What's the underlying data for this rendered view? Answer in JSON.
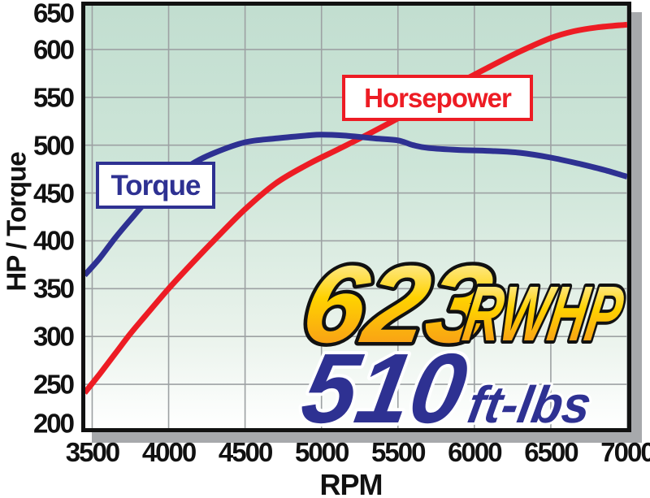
{
  "colors": {
    "background": "#ffffff",
    "plot_top_green": "#c2ded0",
    "plot_bottom_white": "#ffffff",
    "grid": "#9da1a3",
    "border": "#111111",
    "drop_shadow": "#a7a9ac",
    "torque_blue": "#2e3192",
    "horsepower_red": "#ed1c24",
    "gold_gradient_top": "#fef6d8",
    "gold_gradient_mid": "#ffd200",
    "gold_gradient_bottom": "#f68b1f",
    "axis_text": "#111111"
  },
  "chart_data": {
    "type": "line",
    "title": "",
    "xlabel": "RPM",
    "ylabel": "HP / Torque",
    "xlim": [
      3455,
      7000
    ],
    "ylim": [
      200,
      650
    ],
    "x_ticks": [
      3500,
      4000,
      4500,
      5000,
      5500,
      6000,
      6500,
      7000
    ],
    "y_ticks": [
      200,
      250,
      300,
      350,
      400,
      450,
      500,
      550,
      600,
      650
    ],
    "grid": true,
    "legend_position": "labeled boxes on chart",
    "series": [
      {
        "name": "Horsepower",
        "color": "#ed1c24",
        "points": [
          [
            3450,
            241
          ],
          [
            3550,
            261
          ],
          [
            3650,
            282
          ],
          [
            3750,
            303
          ],
          [
            3850,
            322
          ],
          [
            4000,
            350
          ],
          [
            4150,
            376
          ],
          [
            4300,
            401
          ],
          [
            4500,
            433
          ],
          [
            4700,
            460
          ],
          [
            4900,
            479
          ],
          [
            5100,
            495
          ],
          [
            5300,
            511
          ],
          [
            5500,
            528
          ],
          [
            5700,
            546
          ],
          [
            5900,
            565
          ],
          [
            6100,
            582
          ],
          [
            6300,
            598
          ],
          [
            6500,
            612
          ],
          [
            6650,
            619
          ],
          [
            6800,
            623
          ],
          [
            7000,
            626
          ]
        ]
      },
      {
        "name": "Torque",
        "color": "#2e3192",
        "points": [
          [
            3450,
            364
          ],
          [
            3550,
            382
          ],
          [
            3650,
            403
          ],
          [
            3750,
            422
          ],
          [
            3850,
            440
          ],
          [
            4000,
            461
          ],
          [
            4150,
            480
          ],
          [
            4300,
            492
          ],
          [
            4500,
            503
          ],
          [
            4700,
            507
          ],
          [
            4900,
            510
          ],
          [
            5000,
            511
          ],
          [
            5150,
            510
          ],
          [
            5350,
            507
          ],
          [
            5500,
            505
          ],
          [
            5600,
            500
          ],
          [
            5700,
            497
          ],
          [
            5900,
            495
          ],
          [
            6100,
            494
          ],
          [
            6300,
            492
          ],
          [
            6500,
            487
          ],
          [
            6700,
            480
          ],
          [
            6850,
            474
          ],
          [
            7000,
            467
          ]
        ]
      }
    ],
    "annotations": [
      {
        "value": "623",
        "unit": "RWHP",
        "meaning": "peak rear-wheel horsepower",
        "style": "gold"
      },
      {
        "value": "510",
        "unit": "ft-lbs",
        "meaning": "peak torque",
        "style": "blue"
      }
    ]
  }
}
